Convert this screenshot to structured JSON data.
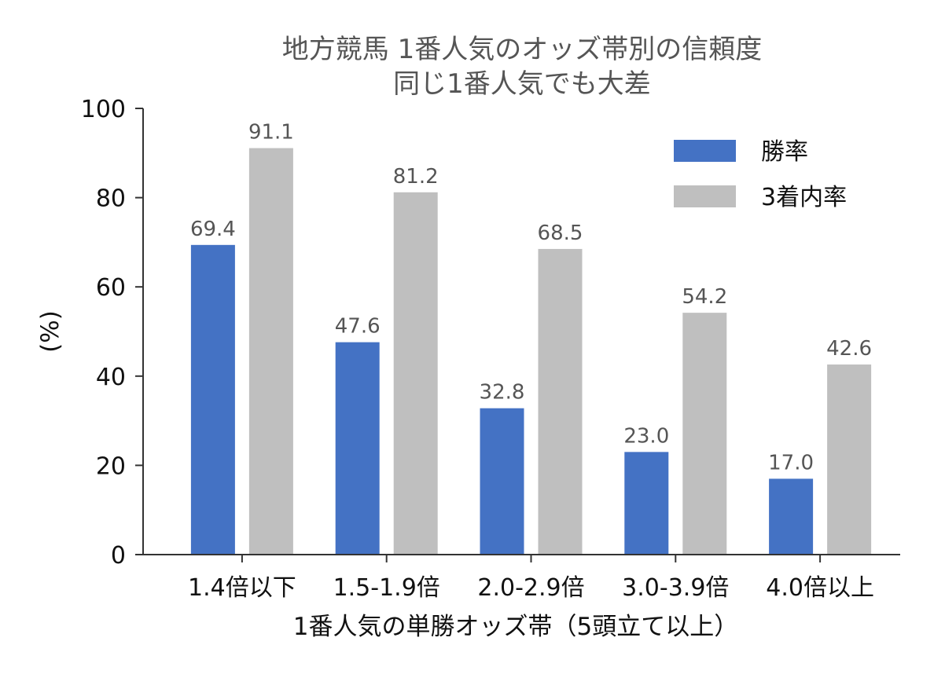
{
  "chart_data": {
    "type": "bar",
    "title": "地方競馬 1番人気のオッズ帯別の信頼度",
    "subtitle": "同じ1番人気でも大差",
    "xlabel": "1番人気の単勝オッズ帯（5頭立て以上）",
    "ylabel": "(%)",
    "ylim": [
      0,
      100
    ],
    "yticks": [
      "0",
      "20",
      "40",
      "60",
      "80",
      "100"
    ],
    "categories": [
      "1.4倍以下",
      "1.5-1.9倍",
      "2.0-2.9倍",
      "3.0-3.9倍",
      "4.0倍以上"
    ],
    "series": [
      {
        "name": "勝率",
        "values": [
          69.4,
          47.6,
          32.8,
          23.0,
          17.0
        ],
        "labels": [
          "69.4",
          "47.6",
          "32.8",
          "23.0",
          "17.0"
        ],
        "color": "#4472c4"
      },
      {
        "name": "3着内率",
        "values": [
          91.1,
          81.2,
          68.5,
          54.2,
          42.6
        ],
        "labels": [
          "91.1",
          "81.2",
          "68.5",
          "54.2",
          "42.6"
        ],
        "color": "#bfbfbf"
      }
    ],
    "legend_position": "top-right",
    "grid": false
  }
}
